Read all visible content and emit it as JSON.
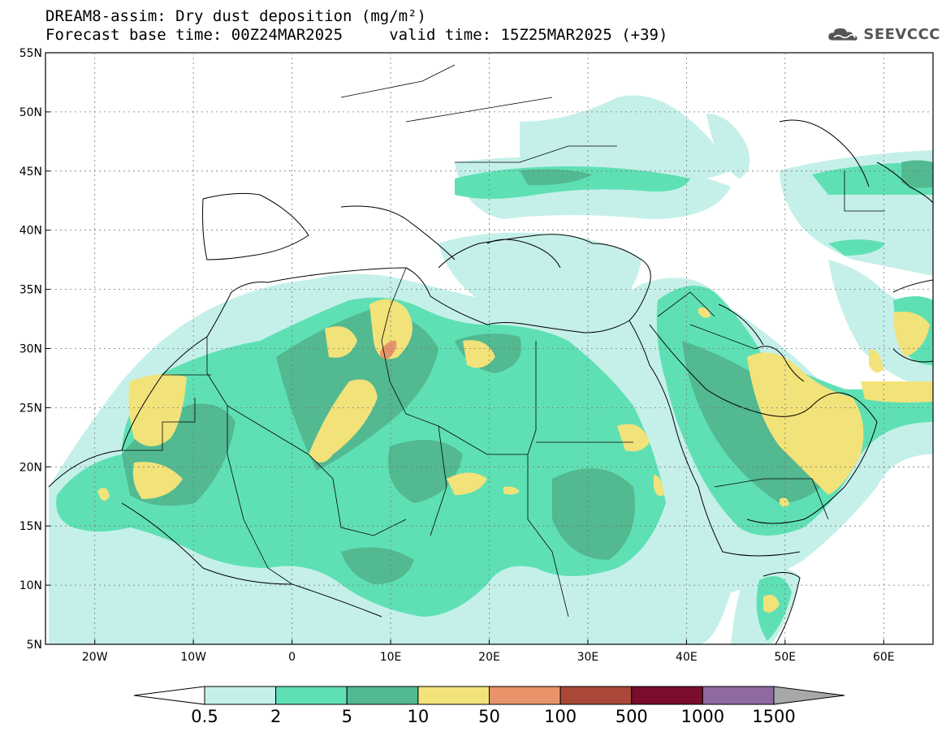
{
  "header": {
    "title_line1": "DREAM8-assim: Dry dust deposition (mg/m²)",
    "title_line2": "Forecast base time: 00Z24MAR2025     valid time: 15Z25MAR2025 (+39)",
    "logo_text": "SEEVCCC"
  },
  "map": {
    "lon_range": [
      -25,
      65
    ],
    "lat_range": [
      5,
      55
    ],
    "lat_ticks": [
      {
        "value": 55,
        "label": "55N"
      },
      {
        "value": 50,
        "label": "50N"
      },
      {
        "value": 45,
        "label": "45N"
      },
      {
        "value": 40,
        "label": "40N"
      },
      {
        "value": 35,
        "label": "35N"
      },
      {
        "value": 30,
        "label": "30N"
      },
      {
        "value": 25,
        "label": "25N"
      },
      {
        "value": 20,
        "label": "20N"
      },
      {
        "value": 15,
        "label": "15N"
      },
      {
        "value": 10,
        "label": "10N"
      },
      {
        "value": 5,
        "label": "5N"
      }
    ],
    "lon_ticks": [
      {
        "value": -20,
        "label": "20W"
      },
      {
        "value": -10,
        "label": "10W"
      },
      {
        "value": 0,
        "label": "0"
      },
      {
        "value": 10,
        "label": "10E"
      },
      {
        "value": 20,
        "label": "20E"
      },
      {
        "value": 30,
        "label": "30E"
      },
      {
        "value": 40,
        "label": "40E"
      },
      {
        "value": 50,
        "label": "50E"
      },
      {
        "value": 60,
        "label": "60E"
      }
    ]
  },
  "colorbar": {
    "labels": [
      "0.5",
      "2",
      "5",
      "10",
      "50",
      "100",
      "500",
      "1000",
      "1500"
    ],
    "colors": [
      "#c5f0ea",
      "#5fe0b4",
      "#52b991",
      "#f2e27a",
      "#e8936a",
      "#a94837",
      "#7a0d2c",
      "#8e6aa0"
    ],
    "under_color": "#ffffff",
    "over_color": "#a8a8a8"
  },
  "colors": {
    "light": "#c5f0ea",
    "mid": "#5fe0b4",
    "dark": "#52b991",
    "yellow": "#f2e27a",
    "orange": "#e8936a"
  }
}
